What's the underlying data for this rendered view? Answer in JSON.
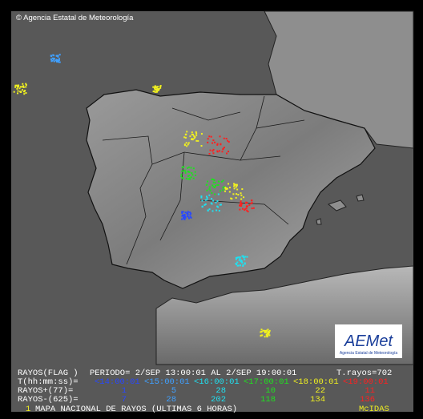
{
  "header": {
    "copyright": "© Agencia Estatal de Meteorología"
  },
  "logo": {
    "name": "AEMet",
    "subtitle": "Agencia Estatal de Meteorología"
  },
  "summary": {
    "flag": "RAYOS(FLAG )",
    "period": "PERIODO= 2/SEP 13:00:01 AL  2/SEP 19:00:01",
    "total": "T.rayos=702"
  },
  "legend": {
    "time_label": "T(hh:mm:ss)=",
    "positive_label": "RAYOS+(77)=",
    "negative_label": "RAYOS-(625)=",
    "intervals": [
      {
        "label": "<14:00:01",
        "color": "#2848ff",
        "positive": "1",
        "negative": "7"
      },
      {
        "label": "<15:00:01",
        "color": "#40a0ff",
        "positive": "5",
        "negative": "28"
      },
      {
        "label": "<16:00:01",
        "color": "#20e0f0",
        "positive": "28",
        "negative": "202"
      },
      {
        "label": "<17:00:01",
        "color": "#20e020",
        "positive": "10",
        "negative": "118"
      },
      {
        "label": "<18:00:01",
        "color": "#f0f020",
        "positive": "22",
        "negative": "134"
      },
      {
        "label": "<19:00:01",
        "color": "#ff2020",
        "positive": "11",
        "negative": "136"
      }
    ]
  },
  "footer": {
    "index": "1",
    "title": "MAPA NACIONAL DE RAYOS (ULTIMAS 6 HORAS)",
    "source": "McIDAS"
  }
}
